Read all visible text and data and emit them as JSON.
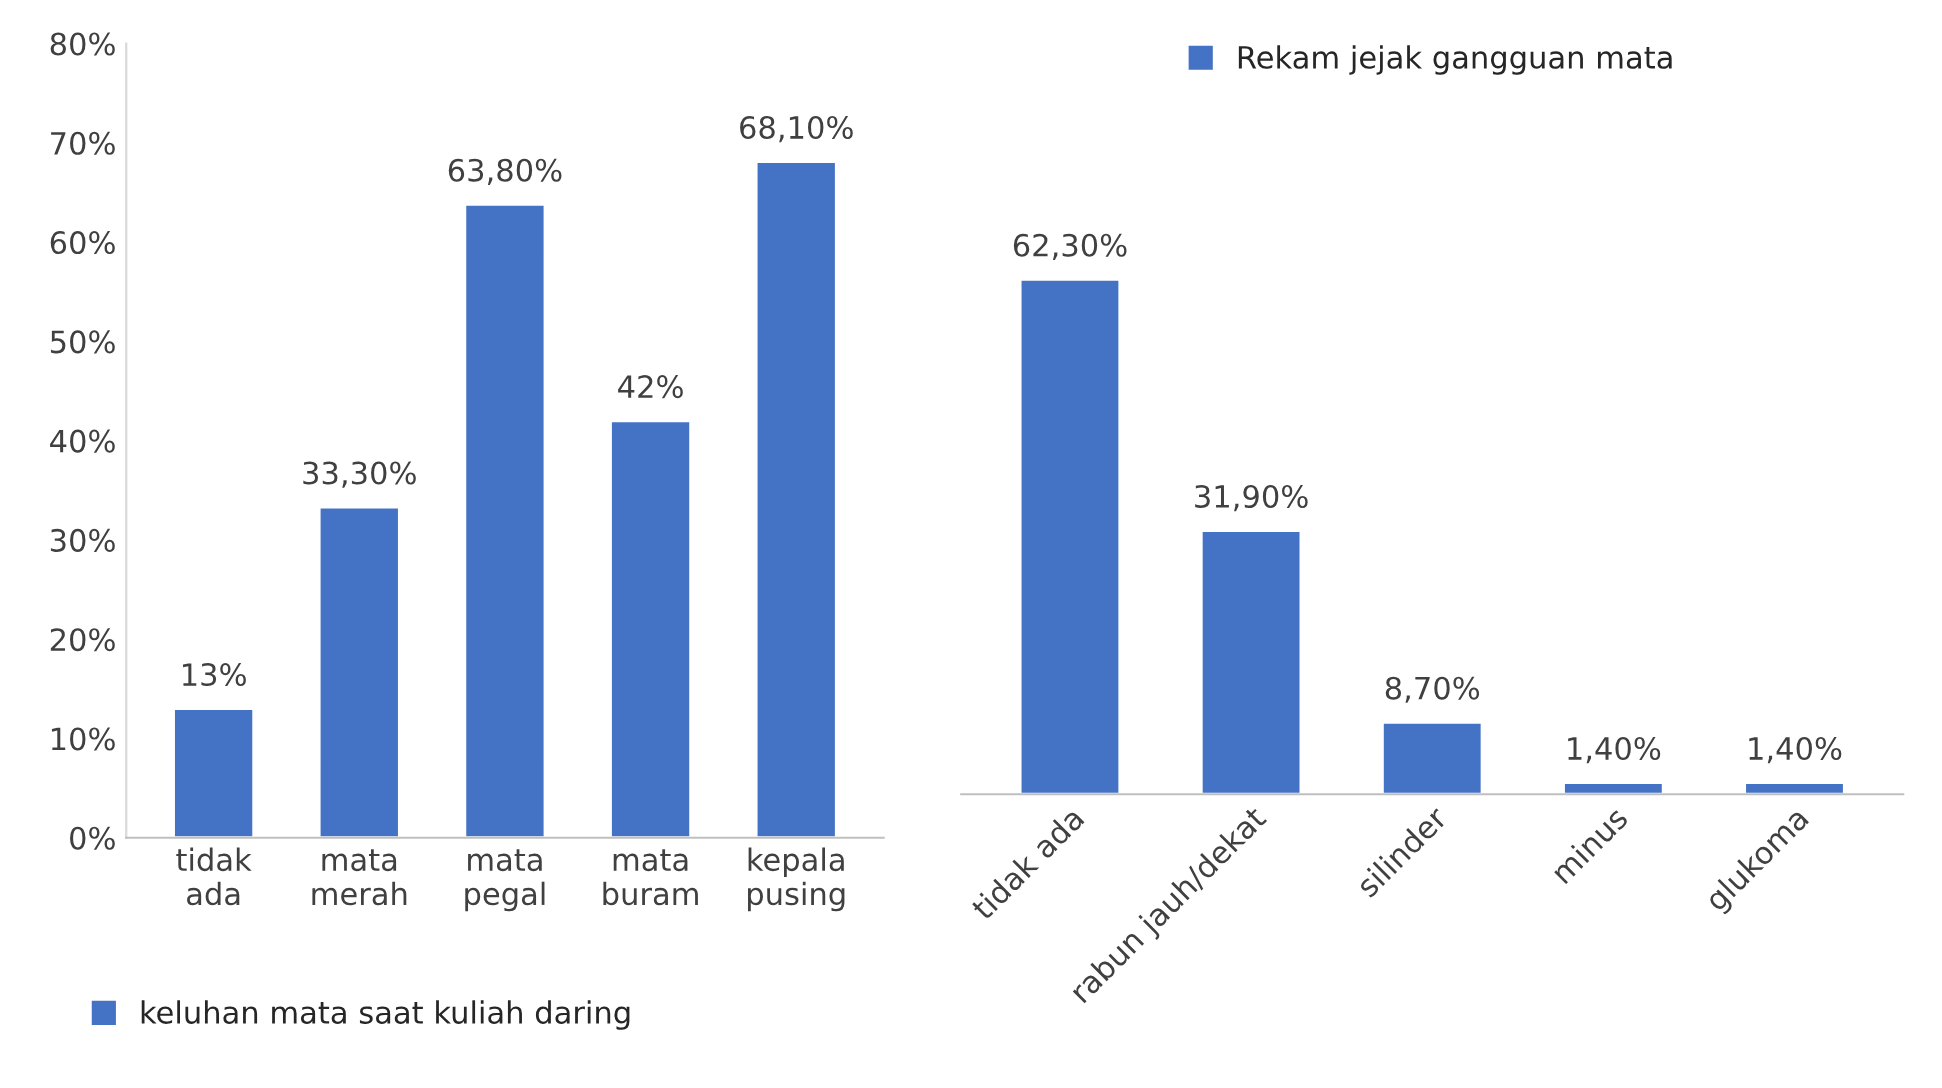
{
  "chart_data": [
    {
      "type": "bar",
      "categories": [
        "tidak\nada",
        "mata\nmerah",
        "mata\npegal",
        "mata\nburam",
        "kepala\npusing"
      ],
      "series": [
        {
          "name": "keluhan mata saat kuliah daring",
          "color": "#4472c4",
          "values": [
            13,
            33.3,
            63.8,
            42,
            68.1
          ],
          "value_labels": [
            "13%",
            "33,30%",
            "63,80%",
            "42%",
            "68,10%"
          ]
        }
      ],
      "ylim": [
        0,
        80
      ],
      "yticks": [
        {
          "value": 0,
          "label": "0%"
        },
        {
          "value": 10,
          "label": "10%"
        },
        {
          "value": 20,
          "label": "20%"
        },
        {
          "value": 30,
          "label": "30%"
        },
        {
          "value": 40,
          "label": "40%"
        },
        {
          "value": 50,
          "label": "50%"
        },
        {
          "value": 60,
          "label": "60%"
        },
        {
          "value": 70,
          "label": "70%"
        },
        {
          "value": 80,
          "label": "80%"
        }
      ],
      "grid": false,
      "legend": "bottom"
    },
    {
      "type": "bar",
      "categories": [
        "tidak ada",
        "rabun jauh/dekat",
        "silinder",
        "minus",
        "glukoma"
      ],
      "series": [
        {
          "name": "Rekam jejak gangguan mata",
          "color": "#4472c4",
          "values": [
            62.3,
            31.9,
            8.7,
            1.4,
            1.4
          ],
          "value_labels": [
            "62,30%",
            "31,90%",
            "8,70%",
            "1,40%",
            "1,40%"
          ]
        }
      ],
      "tick_labels": "x",
      "grid": false,
      "legend": "top"
    }
  ]
}
